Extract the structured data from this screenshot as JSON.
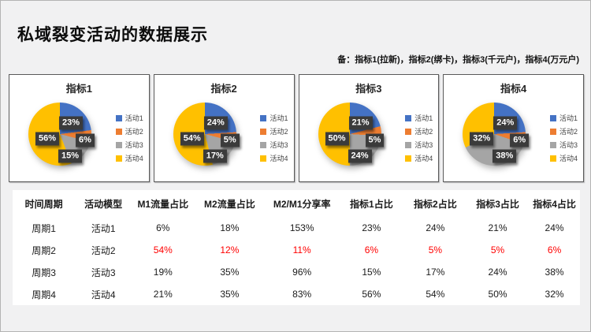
{
  "slide": {
    "title": "私域裂变活动的数据展示",
    "note": "备：指标1(拉新)，指标2(绑卡)，指标3(千元户)，指标4(万元户)"
  },
  "palette": {
    "activity1": "#4472C4",
    "activity2": "#ED7D31",
    "activity3": "#A5A5A5",
    "activity4": "#FFC000",
    "data_label_bg": "#3B3B3B",
    "data_label_text": "#FFFFFF",
    "highlight_red": "#FF0000",
    "panel_border": "#5A5A5A"
  },
  "chart_data": [
    {
      "type": "pie",
      "title": "指标1",
      "categories": [
        "活动1",
        "活动2",
        "活动3",
        "活动4"
      ],
      "values": [
        23,
        6,
        15,
        56
      ],
      "labels": [
        "23%",
        "6%",
        "15%",
        "56%"
      ],
      "colors": [
        "#4472C4",
        "#ED7D31",
        "#A5A5A5",
        "#FFC000"
      ],
      "legend_position": "right",
      "start_angle": 0
    },
    {
      "type": "pie",
      "title": "指标2",
      "categories": [
        "活动1",
        "活动2",
        "活动3",
        "活动4"
      ],
      "values": [
        24,
        5,
        17,
        54
      ],
      "labels": [
        "24%",
        "5%",
        "17%",
        "54%"
      ],
      "colors": [
        "#4472C4",
        "#ED7D31",
        "#A5A5A5",
        "#FFC000"
      ],
      "legend_position": "right",
      "start_angle": 0
    },
    {
      "type": "pie",
      "title": "指标3",
      "categories": [
        "活动1",
        "活动2",
        "活动3",
        "活动4"
      ],
      "values": [
        21,
        5,
        24,
        50
      ],
      "labels": [
        "21%",
        "5%",
        "24%",
        "50%"
      ],
      "colors": [
        "#4472C4",
        "#ED7D31",
        "#A5A5A5",
        "#FFC000"
      ],
      "legend_position": "right",
      "start_angle": 0
    },
    {
      "type": "pie",
      "title": "指标4",
      "categories": [
        "活动1",
        "活动2",
        "活动3",
        "活动4"
      ],
      "values": [
        24,
        6,
        38,
        32
      ],
      "labels": [
        "24%",
        "6%",
        "38%",
        "32%"
      ],
      "colors": [
        "#4472C4",
        "#ED7D31",
        "#A5A5A5",
        "#FFC000"
      ],
      "legend_position": "right",
      "start_angle": 0
    }
  ],
  "table": {
    "columns": [
      "时间周期",
      "活动模型",
      "M1流量占比",
      "M2流量占比",
      "M2/M1分享率",
      "指标1占比",
      "指标2占比",
      "指标3占比",
      "指标4占比"
    ],
    "column_widths_pct": [
      11,
      10,
      11,
      12.5,
      13,
      11.5,
      11,
      11,
      9
    ],
    "rows": [
      {
        "cells": [
          "周期1",
          "活动1",
          "6%",
          "18%",
          "153%",
          "23%",
          "24%",
          "21%",
          "24%"
        ],
        "red_cols": []
      },
      {
        "cells": [
          "周期2",
          "活动2",
          "54%",
          "12%",
          "11%",
          "6%",
          "5%",
          "5%",
          "6%"
        ],
        "red_cols": [
          2,
          3,
          4,
          5,
          6,
          7,
          8
        ]
      },
      {
        "cells": [
          "周期3",
          "活动3",
          "19%",
          "35%",
          "96%",
          "15%",
          "17%",
          "24%",
          "38%"
        ],
        "red_cols": []
      },
      {
        "cells": [
          "周期4",
          "活动4",
          "21%",
          "35%",
          "83%",
          "56%",
          "54%",
          "50%",
          "32%"
        ],
        "red_cols": []
      }
    ]
  }
}
